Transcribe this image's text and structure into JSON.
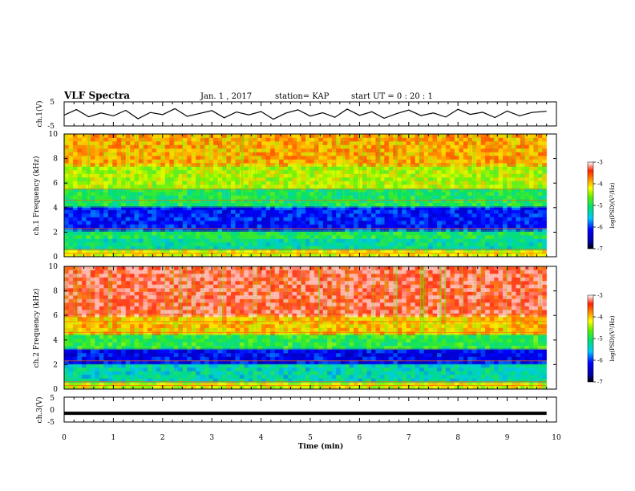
{
  "header": {
    "title": "VLF Spectra",
    "date": "Jan. 1 , 2017",
    "station": "station= KAP",
    "start_ut": "start UT =  0 : 20 : 1"
  },
  "chart_data": [
    {
      "type": "line",
      "name": "ch1-waveform",
      "ylabel": "ch.1(V)",
      "ylim": [
        -5,
        5
      ],
      "yticks": [
        "5",
        "-5"
      ],
      "x": [
        0,
        0.25,
        0.5,
        0.75,
        1,
        1.25,
        1.5,
        1.75,
        2,
        2.25,
        2.5,
        2.75,
        3,
        3.25,
        3.5,
        3.75,
        4,
        4.25,
        4.5,
        4.75,
        5,
        5.25,
        5.5,
        5.75,
        6,
        6.25,
        6.5,
        6.75,
        7,
        7.25,
        7.5,
        7.75,
        8,
        8.25,
        8.5,
        8.75,
        9,
        9.25,
        9.5,
        9.8
      ],
      "y": [
        -0.5,
        1.8,
        -1.2,
        0.4,
        -0.8,
        1.5,
        -2.0,
        0.6,
        -0.3,
        2.2,
        -1.0,
        0.2,
        1.4,
        -1.6,
        0.8,
        -0.4,
        1.0,
        -2.2,
        0.3,
        1.7,
        -0.9,
        0.5,
        -1.4,
        2.0,
        -0.6,
        0.9,
        -1.8,
        0.1,
        1.6,
        -0.7,
        0.4,
        -1.3,
        1.9,
        -0.2,
        0.7,
        -1.5,
        1.2,
        -0.8,
        0.6,
        1.1
      ]
    },
    {
      "type": "heatmap",
      "name": "ch1-spectrogram",
      "ylabel": "ch.1 Frequency (kHz)",
      "xlim": [
        0,
        10
      ],
      "ylim": [
        0,
        10
      ],
      "yticks": [
        "0",
        "2",
        "4",
        "6",
        "8",
        "10"
      ],
      "z_label": "log(PSD)(V²/Hz)",
      "zlim": [
        -7,
        -3
      ],
      "colorbar_ticks": [
        "-3",
        "-4",
        "-5",
        "-6",
        "-7"
      ],
      "freq_bands_khz": [
        {
          "f": [
            0,
            0.5
          ],
          "log_psd": -4.2
        },
        {
          "f": [
            0.5,
            1.5
          ],
          "log_psd": -5.2
        },
        {
          "f": [
            1.5,
            2.2
          ],
          "log_psd": -5.0
        },
        {
          "f": [
            2.2,
            4.0
          ],
          "log_psd": -6.1
        },
        {
          "f": [
            4.0,
            5.5
          ],
          "log_psd": -5.0
        },
        {
          "f": [
            5.5,
            7.5
          ],
          "log_psd": -4.4
        },
        {
          "f": [
            7.5,
            10
          ],
          "log_psd": -3.9
        }
      ]
    },
    {
      "type": "heatmap",
      "name": "ch2-spectrogram",
      "ylabel": "ch.2 Frequency (kHz)",
      "xlim": [
        0,
        10
      ],
      "ylim": [
        0,
        10
      ],
      "yticks": [
        "0",
        "2",
        "4",
        "6",
        "8",
        "10"
      ],
      "z_label": "log(PSD)(V²/Hz)",
      "zlim": [
        -7,
        -3
      ],
      "colorbar_ticks": [
        "-3",
        "-4",
        "-5",
        "-6",
        "-7"
      ],
      "freq_bands_khz": [
        {
          "f": [
            0,
            0.5
          ],
          "log_psd": -4.3
        },
        {
          "f": [
            0.5,
            2.0
          ],
          "log_psd": -5.3
        },
        {
          "f": [
            2.0,
            3.3
          ],
          "log_psd": -6.2
        },
        {
          "f": [
            3.3,
            4.5
          ],
          "log_psd": -4.9
        },
        {
          "f": [
            4.5,
            6.0
          ],
          "log_psd": -4.0
        },
        {
          "f": [
            6.0,
            10
          ],
          "log_psd": -3.3
        }
      ]
    },
    {
      "type": "line",
      "name": "ch3-waveform",
      "ylabel": "ch.3(V)",
      "ylim": [
        -5,
        5
      ],
      "yticks": [
        "5",
        "0",
        "-5"
      ],
      "x": [
        0,
        9.8
      ],
      "y": [
        -1.5,
        -1.5
      ]
    }
  ],
  "x_axis": {
    "label": "Time (min)",
    "xlim": [
      0,
      10
    ],
    "ticks": [
      "0",
      "1",
      "2",
      "3",
      "4",
      "5",
      "6",
      "7",
      "8",
      "9",
      "10"
    ]
  }
}
